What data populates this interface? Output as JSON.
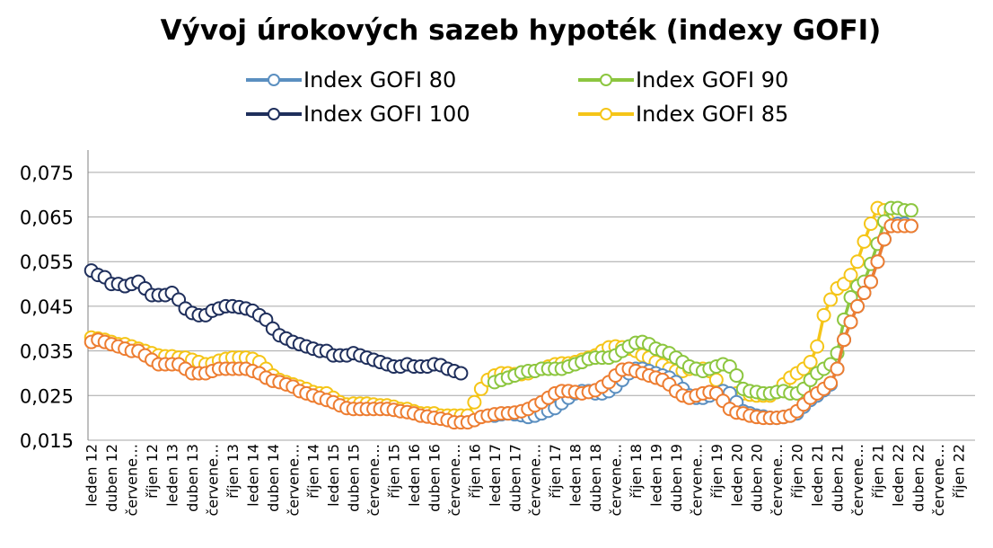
{
  "chart_data": {
    "type": "line",
    "title": "Vývoj úrokových sazeb hypoték (indexy GOFI)",
    "xlabel": "",
    "ylabel": "",
    "ylim": [
      0.015,
      0.08
    ],
    "yticks": [
      "0,015",
      "0,025",
      "0,035",
      "0,045",
      "0,055",
      "0,065",
      "0,075"
    ],
    "grid": true,
    "legend_position": "top",
    "xtick_labels": [
      "leden 12",
      "duben 12",
      "červene…",
      "říjen 12",
      "leden 13",
      "duben 13",
      "červene…",
      "říjen 13",
      "leden 14",
      "duben 14",
      "červene…",
      "říjen 14",
      "leden 15",
      "duben 15",
      "červene…",
      "říjen 15",
      "leden 16",
      "duben 16",
      "červene…",
      "říjen 16",
      "leden 17",
      "duben 17",
      "červene…",
      "říjen 17",
      "leden 18",
      "duben 18",
      "červene…",
      "říjen 18",
      "leden 19",
      "duben 19",
      "červene…",
      "říjen 19",
      "leden 20",
      "duben 20",
      "červene…",
      "říjen 20",
      "leden 21",
      "duben 21",
      "červene…",
      "říjen 21",
      "leden 22",
      "duben 22",
      "červene…",
      "říjen 22"
    ],
    "months_per_tick": 3,
    "series": [
      {
        "name": "Index GOFI 80",
        "color": "#5b8fc0",
        "start_month_index": 60,
        "values": [
          0.0205,
          0.0208,
          0.021,
          0.0208,
          0.0206,
          0.0202,
          0.0205,
          0.021,
          0.0216,
          0.0222,
          0.0233,
          0.0245,
          0.0255,
          0.026,
          0.026,
          0.0255,
          0.0255,
          0.026,
          0.027,
          0.0285,
          0.03,
          0.031,
          0.031,
          0.0305,
          0.03,
          0.0295,
          0.029,
          0.028,
          0.0265,
          0.025,
          0.0245,
          0.0245,
          0.025,
          0.0255,
          0.026,
          0.0255,
          0.0235,
          0.0215,
          0.021,
          0.0205,
          0.0203,
          0.02,
          0.02,
          0.0202,
          0.0205,
          0.021,
          0.0225,
          0.024,
          0.025,
          0.0262,
          0.0275,
          0.031,
          0.0375,
          0.0415,
          0.045,
          0.048,
          0.0505,
          0.055,
          0.06,
          0.063,
          0.0635,
          0.0635,
          0.063
        ]
      },
      {
        "name": "Index GOFI 90",
        "color": "#8cc63f",
        "start_month_index": 60,
        "values": [
          0.028,
          0.0285,
          0.029,
          0.0295,
          0.0302,
          0.0305,
          0.0305,
          0.031,
          0.031,
          0.031,
          0.031,
          0.0315,
          0.032,
          0.0325,
          0.0332,
          0.0335,
          0.0335,
          0.0335,
          0.034,
          0.035,
          0.036,
          0.0368,
          0.037,
          0.0365,
          0.0355,
          0.035,
          0.0345,
          0.0335,
          0.0325,
          0.0315,
          0.031,
          0.0305,
          0.031,
          0.0315,
          0.032,
          0.0315,
          0.0295,
          0.0265,
          0.026,
          0.0258,
          0.0255,
          0.0255,
          0.0258,
          0.026,
          0.0255,
          0.0255,
          0.0265,
          0.0285,
          0.03,
          0.031,
          0.032,
          0.0345,
          0.042,
          0.047,
          0.0495,
          0.0505,
          0.0545,
          0.059,
          0.064,
          0.067,
          0.067,
          0.0665,
          0.0665
        ]
      },
      {
        "name": "Index GOFI 100",
        "color": "#1f2f5c",
        "start_month_index": 0,
        "values": [
          0.053,
          0.052,
          0.0515,
          0.05,
          0.05,
          0.0495,
          0.05,
          0.0505,
          0.049,
          0.0475,
          0.0475,
          0.0475,
          0.048,
          0.0465,
          0.0445,
          0.0435,
          0.043,
          0.043,
          0.044,
          0.0445,
          0.045,
          0.045,
          0.0448,
          0.0445,
          0.044,
          0.043,
          0.042,
          0.04,
          0.0385,
          0.0378,
          0.037,
          0.0365,
          0.036,
          0.0355,
          0.035,
          0.035,
          0.034,
          0.034,
          0.034,
          0.0345,
          0.034,
          0.0335,
          0.033,
          0.0325,
          0.032,
          0.0315,
          0.0315,
          0.032,
          0.0315,
          0.0315,
          0.0315,
          0.032,
          0.0318,
          0.031,
          0.0305,
          0.03
        ]
      },
      {
        "name": "Index GOFI 85",
        "color": "#f5c518",
        "start_month_index": 0,
        "values": [
          0.038,
          0.0378,
          0.0375,
          0.037,
          0.0365,
          0.0365,
          0.036,
          0.0355,
          0.035,
          0.0345,
          0.034,
          0.0338,
          0.0338,
          0.0335,
          0.0335,
          0.033,
          0.0325,
          0.032,
          0.0322,
          0.0328,
          0.0332,
          0.0335,
          0.0335,
          0.0335,
          0.0332,
          0.0325,
          0.031,
          0.0295,
          0.0285,
          0.028,
          0.0275,
          0.027,
          0.0265,
          0.0258,
          0.0255,
          0.0255,
          0.0245,
          0.0235,
          0.023,
          0.0232,
          0.0232,
          0.0232,
          0.023,
          0.0228,
          0.0228,
          0.0225,
          0.022,
          0.022,
          0.0215,
          0.021,
          0.021,
          0.021,
          0.0205,
          0.0205,
          0.0205,
          0.0205,
          0.0205,
          0.0235,
          0.0265,
          0.0285,
          0.0295,
          0.03,
          0.03,
          0.0298,
          0.0298,
          0.03,
          0.0305,
          0.031,
          0.0315,
          0.032,
          0.0322,
          0.0322,
          0.0325,
          0.033,
          0.0335,
          0.034,
          0.035,
          0.0358,
          0.036,
          0.0358,
          0.0355,
          0.035,
          0.034,
          0.0335,
          0.0325,
          0.0318,
          0.031,
          0.0305,
          0.0305,
          0.031,
          0.031,
          0.031,
          0.0305,
          0.0285,
          0.026,
          0.0255,
          0.0255,
          0.0255,
          0.0252,
          0.025,
          0.025,
          0.025,
          0.0258,
          0.0275,
          0.029,
          0.03,
          0.031,
          0.0325,
          0.036,
          0.043,
          0.0465,
          0.049,
          0.05,
          0.052,
          0.055,
          0.0595,
          0.0635,
          0.067,
          0.0665,
          0.066,
          0.066
        ]
      },
      {
        "name": "",
        "color": "#ed7d31",
        "start_month_index": 0,
        "values": [
          0.037,
          0.0375,
          0.037,
          0.0365,
          0.036,
          0.0355,
          0.035,
          0.035,
          0.034,
          0.033,
          0.032,
          0.032,
          0.032,
          0.032,
          0.031,
          0.03,
          0.03,
          0.03,
          0.0305,
          0.031,
          0.031,
          0.031,
          0.031,
          0.031,
          0.0305,
          0.03,
          0.029,
          0.0283,
          0.028,
          0.0275,
          0.027,
          0.026,
          0.0255,
          0.025,
          0.0245,
          0.024,
          0.0235,
          0.0228,
          0.0222,
          0.022,
          0.022,
          0.022,
          0.022,
          0.022,
          0.022,
          0.0218,
          0.0215,
          0.0213,
          0.021,
          0.0205,
          0.0203,
          0.02,
          0.0198,
          0.0195,
          0.019,
          0.019,
          0.019,
          0.0195,
          0.0202,
          0.0205,
          0.0208,
          0.021,
          0.021,
          0.0212,
          0.0215,
          0.022,
          0.0228,
          0.0235,
          0.0245,
          0.0255,
          0.026,
          0.026,
          0.0258,
          0.0255,
          0.0258,
          0.0262,
          0.027,
          0.028,
          0.0295,
          0.0308,
          0.031,
          0.0305,
          0.03,
          0.0295,
          0.029,
          0.0285,
          0.0275,
          0.026,
          0.025,
          0.0245,
          0.025,
          0.0255,
          0.0258,
          0.0255,
          0.0238,
          0.022,
          0.0212,
          0.021,
          0.0205,
          0.0202,
          0.02,
          0.02,
          0.02,
          0.0202,
          0.0205,
          0.0215,
          0.023,
          0.0245,
          0.0255,
          0.0265,
          0.0278,
          0.031,
          0.0375,
          0.0415,
          0.045,
          0.048,
          0.0505,
          0.055,
          0.06,
          0.063,
          0.063,
          0.063,
          0.063
        ]
      }
    ]
  }
}
